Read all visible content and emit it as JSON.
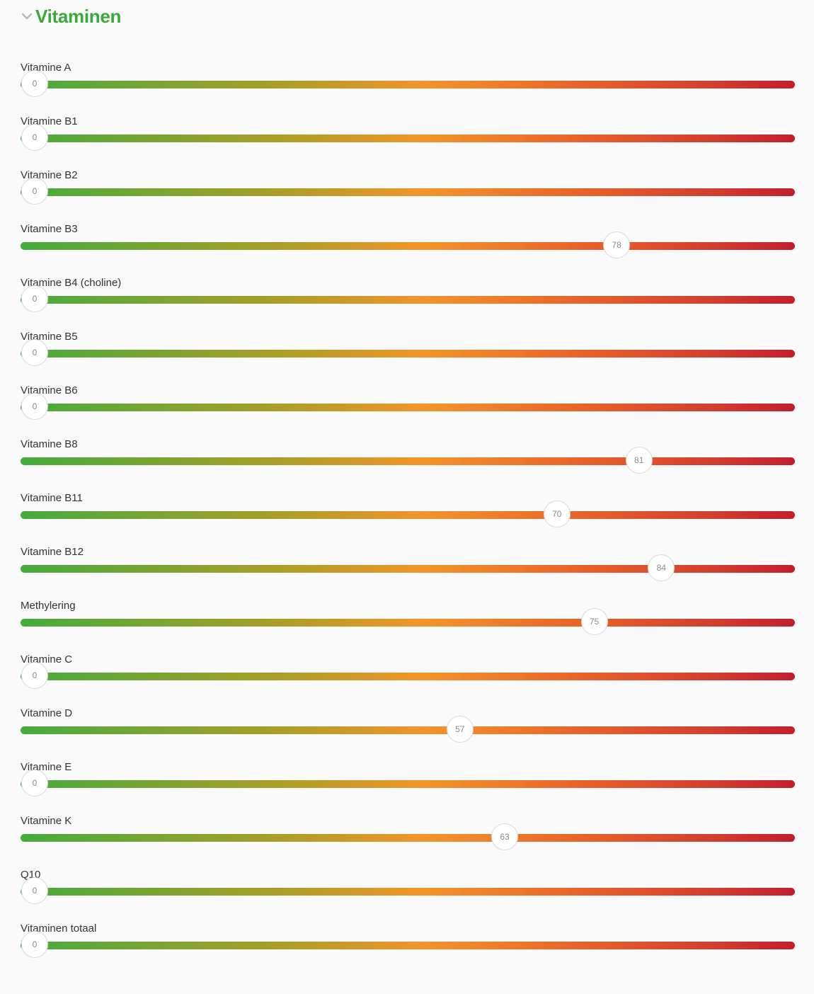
{
  "section": {
    "title": "Vitaminen",
    "collapse_icon": "chevron-down-icon",
    "title_color": "#3aa83a"
  },
  "scale": {
    "min": 0,
    "max": 100
  },
  "gradient_colors": [
    "#44ab3d",
    "#b39d27",
    "#f3952b",
    "#e8642a",
    "#d23c2f",
    "#c41d2e"
  ],
  "sliders": [
    {
      "label": "Vitamine A",
      "value": 0
    },
    {
      "label": "Vitamine B1",
      "value": 0
    },
    {
      "label": "Vitamine B2",
      "value": 0
    },
    {
      "label": "Vitamine B3",
      "value": 78
    },
    {
      "label": "Vitamine B4 (choline)",
      "value": 0
    },
    {
      "label": "Vitamine B5",
      "value": 0
    },
    {
      "label": "Vitamine B6",
      "value": 0
    },
    {
      "label": "Vitamine B8",
      "value": 81
    },
    {
      "label": "Vitamine B11",
      "value": 70
    },
    {
      "label": "Vitamine B12",
      "value": 84
    },
    {
      "label": "Methylering",
      "value": 75
    },
    {
      "label": "Vitamine C",
      "value": 0
    },
    {
      "label": "Vitamine D",
      "value": 57
    },
    {
      "label": "Vitamine E",
      "value": 0
    },
    {
      "label": "Vitamine K",
      "value": 63
    },
    {
      "label": "Q10",
      "value": 0
    },
    {
      "label": "Vitaminen totaal",
      "value": 0
    }
  ]
}
